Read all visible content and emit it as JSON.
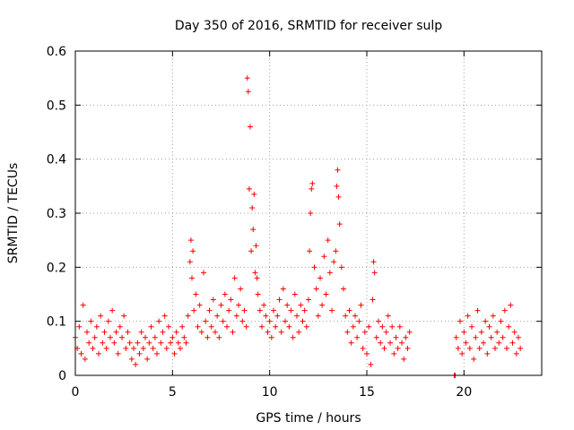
{
  "chart_data": {
    "type": "scatter",
    "title": "Day 350 of 2016, SRMTID for receiver sulp",
    "xlabel": "GPS time / hours",
    "ylabel": "SRMTID / TECUs",
    "xlim": [
      0,
      24
    ],
    "ylim": [
      0,
      0.6
    ],
    "x_ticks": [
      0,
      5,
      10,
      15,
      20
    ],
    "y_ticks": [
      0,
      0.1,
      0.2,
      0.3,
      0.4,
      0.5,
      0.6
    ],
    "x_tick_labels": [
      "0",
      "5",
      "10",
      "15",
      "20"
    ],
    "y_tick_labels": [
      "0",
      "0.1",
      "0.2",
      "0.3",
      "0.4",
      "0.5",
      "0.6"
    ],
    "grid": true,
    "marker": "+",
    "marker_color": "#ff0000",
    "series": [
      {
        "name": "SRMTID",
        "points": [
          [
            0.0,
            0.07
          ],
          [
            0.1,
            0.05
          ],
          [
            0.2,
            0.09
          ],
          [
            0.3,
            0.04
          ],
          [
            0.4,
            0.13
          ],
          [
            0.5,
            0.03
          ],
          [
            0.6,
            0.08
          ],
          [
            0.7,
            0.06
          ],
          [
            0.8,
            0.1
          ],
          [
            0.9,
            0.05
          ],
          [
            1.0,
            0.07
          ],
          [
            1.1,
            0.09
          ],
          [
            1.2,
            0.04
          ],
          [
            1.3,
            0.11
          ],
          [
            1.4,
            0.06
          ],
          [
            1.5,
            0.08
          ],
          [
            1.6,
            0.05
          ],
          [
            1.7,
            0.1
          ],
          [
            1.8,
            0.07
          ],
          [
            1.9,
            0.12
          ],
          [
            2.0,
            0.06
          ],
          [
            2.1,
            0.08
          ],
          [
            2.2,
            0.04
          ],
          [
            2.3,
            0.09
          ],
          [
            2.4,
            0.07
          ],
          [
            2.5,
            0.11
          ],
          [
            2.6,
            0.05
          ],
          [
            2.7,
            0.08
          ],
          [
            2.8,
            0.06
          ],
          [
            2.9,
            0.03
          ],
          [
            3.0,
            0.05
          ],
          [
            3.1,
            0.02
          ],
          [
            3.2,
            0.06
          ],
          [
            3.3,
            0.04
          ],
          [
            3.4,
            0.08
          ],
          [
            3.5,
            0.05
          ],
          [
            3.6,
            0.07
          ],
          [
            3.7,
            0.03
          ],
          [
            3.8,
            0.06
          ],
          [
            3.9,
            0.09
          ],
          [
            4.0,
            0.05
          ],
          [
            4.1,
            0.07
          ],
          [
            4.2,
            0.04
          ],
          [
            4.3,
            0.1
          ],
          [
            4.4,
            0.06
          ],
          [
            4.5,
            0.08
          ],
          [
            4.6,
            0.11
          ],
          [
            4.7,
            0.05
          ],
          [
            4.8,
            0.09
          ],
          [
            4.9,
            0.06
          ],
          [
            5.0,
            0.07
          ],
          [
            5.1,
            0.04
          ],
          [
            5.2,
            0.08
          ],
          [
            5.3,
            0.06
          ],
          [
            5.4,
            0.05
          ],
          [
            5.5,
            0.09
          ],
          [
            5.6,
            0.07
          ],
          [
            5.7,
            0.06
          ],
          [
            5.8,
            0.11
          ],
          [
            5.9,
            0.21
          ],
          [
            5.95,
            0.25
          ],
          [
            6.0,
            0.18
          ],
          [
            6.05,
            0.23
          ],
          [
            6.1,
            0.12
          ],
          [
            6.2,
            0.15
          ],
          [
            6.3,
            0.09
          ],
          [
            6.4,
            0.13
          ],
          [
            6.5,
            0.08
          ],
          [
            6.6,
            0.19
          ],
          [
            6.7,
            0.1
          ],
          [
            6.8,
            0.07
          ],
          [
            6.9,
            0.12
          ],
          [
            7.0,
            0.09
          ],
          [
            7.1,
            0.14
          ],
          [
            7.2,
            0.08
          ],
          [
            7.3,
            0.11
          ],
          [
            7.4,
            0.07
          ],
          [
            7.5,
            0.13
          ],
          [
            7.6,
            0.1
          ],
          [
            7.7,
            0.15
          ],
          [
            7.8,
            0.09
          ],
          [
            7.9,
            0.12
          ],
          [
            8.0,
            0.14
          ],
          [
            8.1,
            0.08
          ],
          [
            8.2,
            0.18
          ],
          [
            8.3,
            0.11
          ],
          [
            8.4,
            0.13
          ],
          [
            8.5,
            0.16
          ],
          [
            8.6,
            0.1
          ],
          [
            8.7,
            0.12
          ],
          [
            8.8,
            0.09
          ],
          [
            8.85,
            0.55
          ],
          [
            8.9,
            0.525
          ],
          [
            8.95,
            0.345
          ],
          [
            9.0,
            0.46
          ],
          [
            9.05,
            0.23
          ],
          [
            9.1,
            0.31
          ],
          [
            9.15,
            0.27
          ],
          [
            9.2,
            0.335
          ],
          [
            9.25,
            0.19
          ],
          [
            9.3,
            0.24
          ],
          [
            9.35,
            0.18
          ],
          [
            9.4,
            0.15
          ],
          [
            9.5,
            0.12
          ],
          [
            9.6,
            0.09
          ],
          [
            9.7,
            0.13
          ],
          [
            9.8,
            0.11
          ],
          [
            9.9,
            0.08
          ],
          [
            10.0,
            0.1
          ],
          [
            10.1,
            0.07
          ],
          [
            10.2,
            0.12
          ],
          [
            10.3,
            0.09
          ],
          [
            10.4,
            0.11
          ],
          [
            10.5,
            0.14
          ],
          [
            10.6,
            0.08
          ],
          [
            10.7,
            0.16
          ],
          [
            10.8,
            0.1
          ],
          [
            10.9,
            0.13
          ],
          [
            11.0,
            0.09
          ],
          [
            11.1,
            0.12
          ],
          [
            11.2,
            0.07
          ],
          [
            11.3,
            0.15
          ],
          [
            11.4,
            0.11
          ],
          [
            11.5,
            0.08
          ],
          [
            11.6,
            0.13
          ],
          [
            11.7,
            0.1
          ],
          [
            11.8,
            0.12
          ],
          [
            11.9,
            0.09
          ],
          [
            12.0,
            0.14
          ],
          [
            12.05,
            0.23
          ],
          [
            12.1,
            0.3
          ],
          [
            12.15,
            0.345
          ],
          [
            12.2,
            0.355
          ],
          [
            12.3,
            0.2
          ],
          [
            12.4,
            0.16
          ],
          [
            12.5,
            0.11
          ],
          [
            12.6,
            0.18
          ],
          [
            12.7,
            0.13
          ],
          [
            12.8,
            0.22
          ],
          [
            12.9,
            0.15
          ],
          [
            13.0,
            0.25
          ],
          [
            13.1,
            0.19
          ],
          [
            13.2,
            0.12
          ],
          [
            13.3,
            0.21
          ],
          [
            13.4,
            0.23
          ],
          [
            13.45,
            0.35
          ],
          [
            13.5,
            0.38
          ],
          [
            13.55,
            0.33
          ],
          [
            13.6,
            0.28
          ],
          [
            13.7,
            0.2
          ],
          [
            13.8,
            0.16
          ],
          [
            13.9,
            0.11
          ],
          [
            14.0,
            0.08
          ],
          [
            14.1,
            0.12
          ],
          [
            14.2,
            0.06
          ],
          [
            14.3,
            0.09
          ],
          [
            14.4,
            0.11
          ],
          [
            14.5,
            0.07
          ],
          [
            14.6,
            0.1
          ],
          [
            14.7,
            0.13
          ],
          [
            14.8,
            0.05
          ],
          [
            14.9,
            0.08
          ],
          [
            15.0,
            0.04
          ],
          [
            15.1,
            0.09
          ],
          [
            15.2,
            0.02
          ],
          [
            15.3,
            0.14
          ],
          [
            15.35,
            0.21
          ],
          [
            15.4,
            0.19
          ],
          [
            15.5,
            0.07
          ],
          [
            15.6,
            0.1
          ],
          [
            15.7,
            0.06
          ],
          [
            15.8,
            0.09
          ],
          [
            15.9,
            0.05
          ],
          [
            16.0,
            0.08
          ],
          [
            16.1,
            0.11
          ],
          [
            16.2,
            0.06
          ],
          [
            16.3,
            0.09
          ],
          [
            16.4,
            0.04
          ],
          [
            16.5,
            0.07
          ],
          [
            16.6,
            0.05
          ],
          [
            16.7,
            0.09
          ],
          [
            16.8,
            0.06
          ],
          [
            16.9,
            0.03
          ],
          [
            17.0,
            0.07
          ],
          [
            17.1,
            0.05
          ],
          [
            17.2,
            0.08
          ],
          [
            19.5,
            0.0
          ],
          [
            19.55,
            0.0
          ],
          [
            19.6,
            0.07
          ],
          [
            19.7,
            0.05
          ],
          [
            19.8,
            0.1
          ],
          [
            19.9,
            0.04
          ],
          [
            20.0,
            0.08
          ],
          [
            20.1,
            0.06
          ],
          [
            20.2,
            0.11
          ],
          [
            20.3,
            0.05
          ],
          [
            20.4,
            0.09
          ],
          [
            20.5,
            0.03
          ],
          [
            20.6,
            0.07
          ],
          [
            20.7,
            0.12
          ],
          [
            20.8,
            0.05
          ],
          [
            20.9,
            0.08
          ],
          [
            21.0,
            0.06
          ],
          [
            21.1,
            0.1
          ],
          [
            21.2,
            0.04
          ],
          [
            21.3,
            0.09
          ],
          [
            21.4,
            0.07
          ],
          [
            21.5,
            0.11
          ],
          [
            21.6,
            0.05
          ],
          [
            21.7,
            0.08
          ],
          [
            21.8,
            0.06
          ],
          [
            21.9,
            0.1
          ],
          [
            22.0,
            0.07
          ],
          [
            22.1,
            0.12
          ],
          [
            22.2,
            0.05
          ],
          [
            22.3,
            0.09
          ],
          [
            22.4,
            0.13
          ],
          [
            22.5,
            0.06
          ],
          [
            22.6,
            0.08
          ],
          [
            22.7,
            0.04
          ],
          [
            22.8,
            0.07
          ],
          [
            22.9,
            0.05
          ]
        ]
      }
    ]
  }
}
